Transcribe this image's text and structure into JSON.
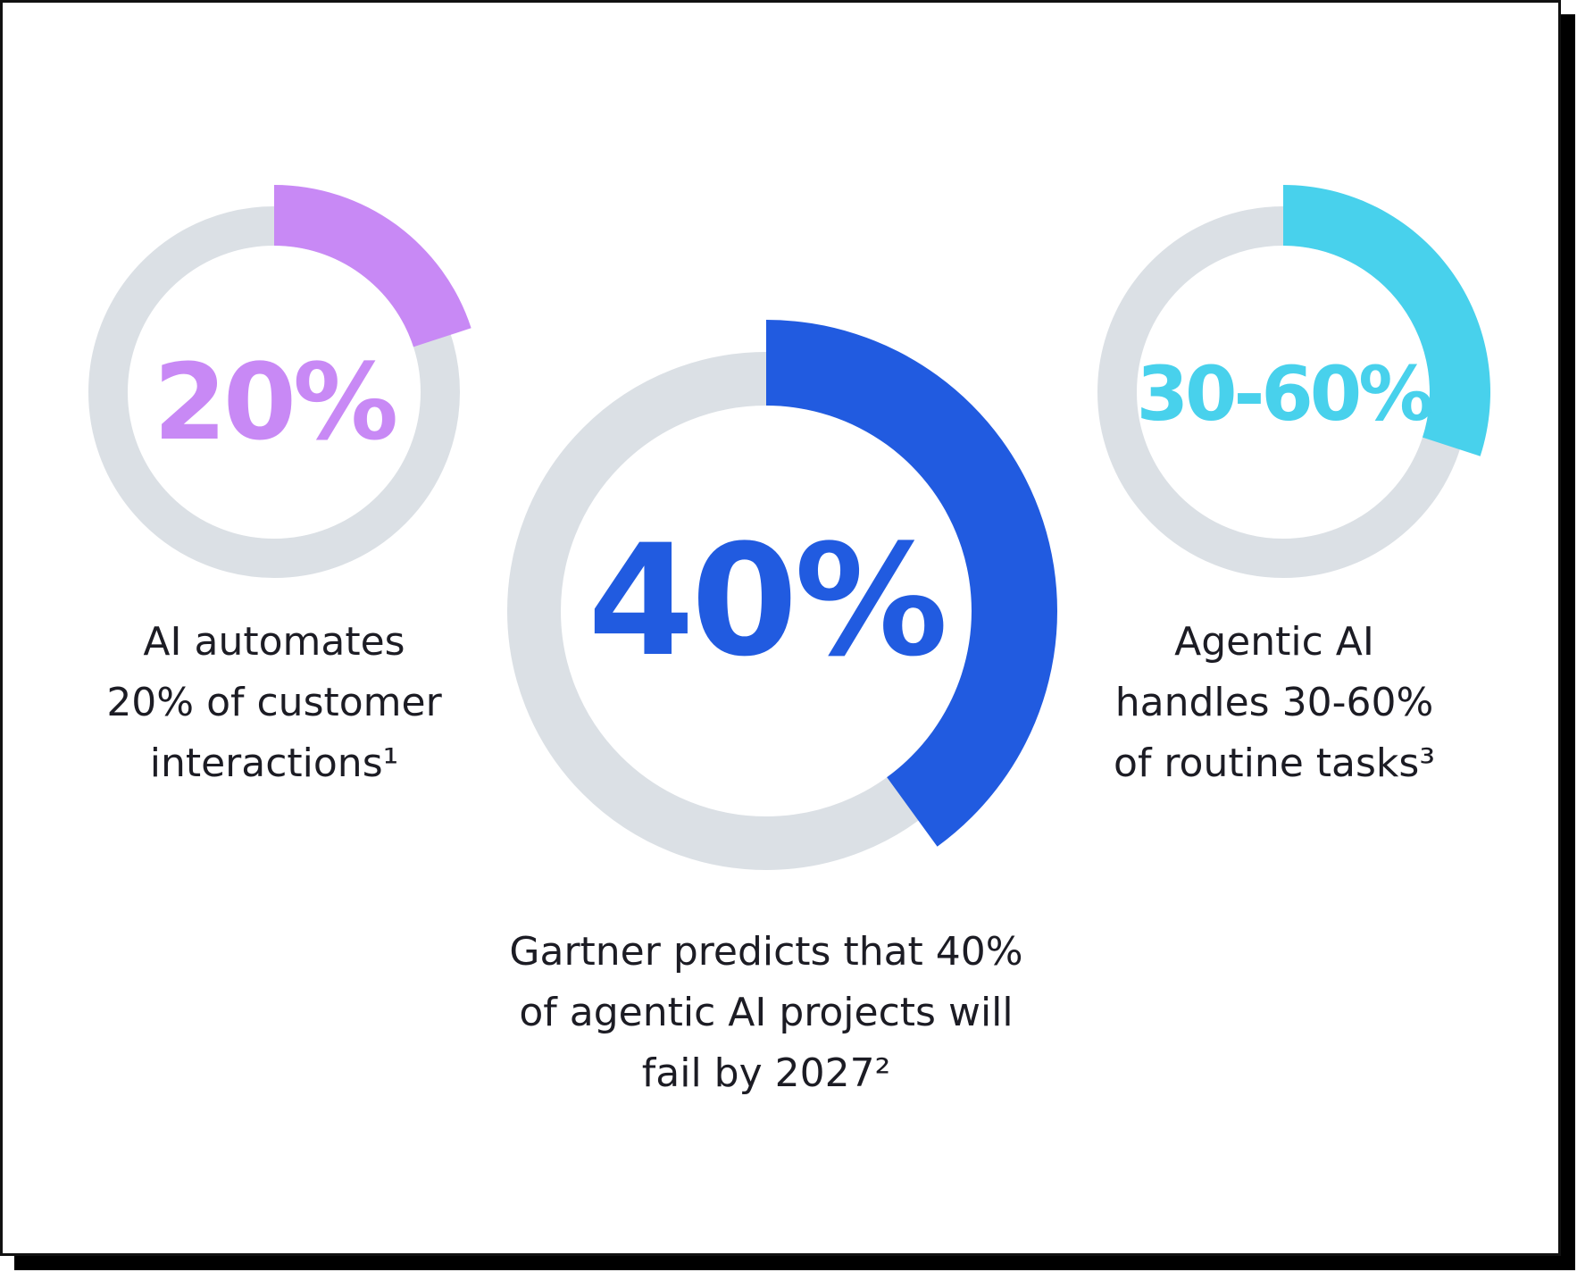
{
  "chart_data": {
    "type": "pie",
    "style": "donut",
    "track_color": "#dbe0e5",
    "items": [
      {
        "name": "ai-automates",
        "value": 20,
        "value_label": "20%",
        "color": "#c889f5",
        "caption": [
          "AI automates",
          "20% of customer",
          "interactions¹"
        ]
      },
      {
        "name": "gartner-predicts",
        "value": 40,
        "value_label": "40%",
        "color": "#215be0",
        "caption": [
          "Gartner predicts that 40%",
          "of agentic AI projects will",
          "fail by 2027²"
        ]
      },
      {
        "name": "agentic-ai",
        "value": 30,
        "value_range": [
          30,
          60
        ],
        "value_label": "30-60%",
        "color": "#48d1ec",
        "caption": [
          "Agentic AI",
          "handles 30-60%",
          "of routine tasks³"
        ]
      }
    ]
  }
}
